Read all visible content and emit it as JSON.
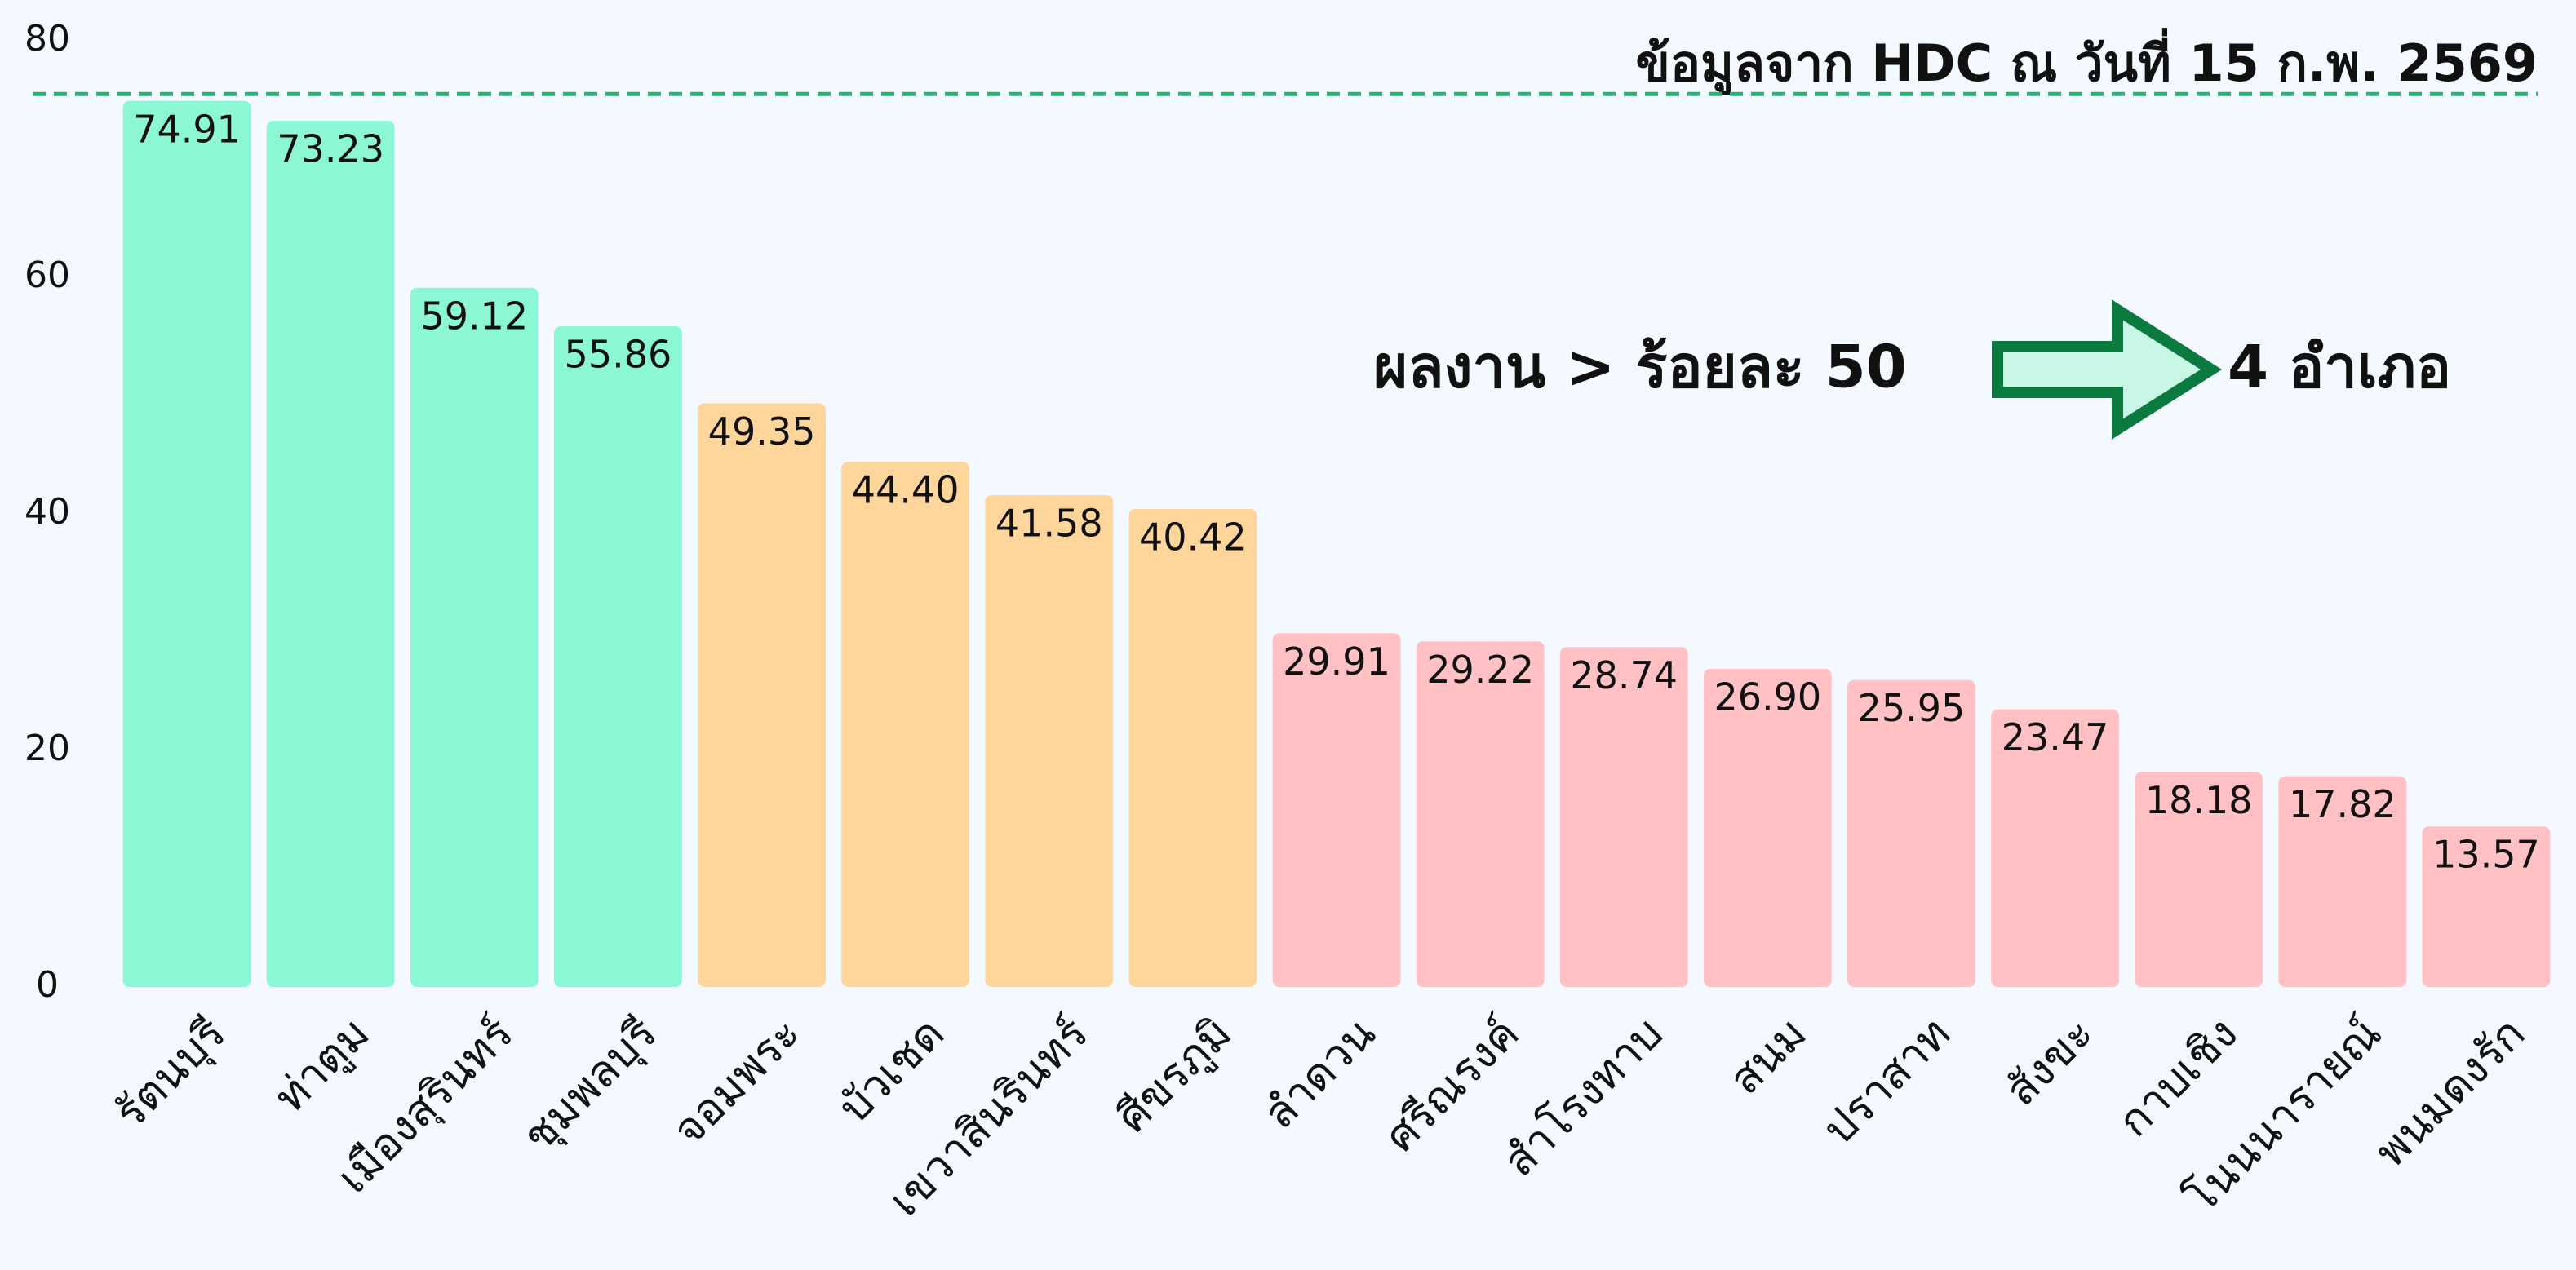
{
  "chart_data": {
    "type": "bar",
    "title": "ข้อมูลจาก HDC ณ วันที่ 15 ก.พ. 2569",
    "annotations": [
      "ผลงาน > ร้อยละ 50",
      "4 อำเภอ"
    ],
    "categories": [
      "รัตนบุรี",
      "ท่าตูม",
      "เมืองสุรินทร์",
      "ชุมพลบุรี",
      "จอมพระ",
      "บัวเชด",
      "เขวาสินรินทร์",
      "ศีขรภูมิ",
      "ลำดวน",
      "ศรีณรงค์",
      "สำโรงทาบ",
      "สนม",
      "ปราสาท",
      "สังขะ",
      "กาบเชิง",
      "โนนนารายณ์",
      "พนมดงรัก"
    ],
    "values": [
      74.91,
      73.23,
      59.12,
      55.86,
      49.35,
      44.4,
      41.58,
      40.42,
      29.91,
      29.22,
      28.74,
      26.9,
      25.95,
      23.47,
      18.18,
      17.82,
      13.57
    ],
    "value_labels": [
      "74.91",
      "73.23",
      "59.12",
      "55.86",
      "49.35",
      "44.40",
      "41.58",
      "40.42",
      "29.91",
      "29.22",
      "28.74",
      "26.90",
      "25.95",
      "23.47",
      "18.18",
      "17.82",
      "13.57"
    ],
    "colors": [
      "#8cf7d4",
      "#8cf7d4",
      "#8cf7d4",
      "#8cf7d4",
      "#fed59a",
      "#fed59a",
      "#fed59a",
      "#fed59a",
      "#ffc1c3",
      "#ffc1c3",
      "#ffc1c3",
      "#ffc1c3",
      "#ffc1c3",
      "#ffc1c3",
      "#ffc1c3",
      "#ffc1c3",
      "#ffc1c3"
    ],
    "reference_line": {
      "value": 75.5,
      "color": "#22b573"
    },
    "ylim": [
      0,
      80
    ],
    "yticks": [
      0,
      20,
      40,
      60,
      80
    ],
    "grid": false
  }
}
